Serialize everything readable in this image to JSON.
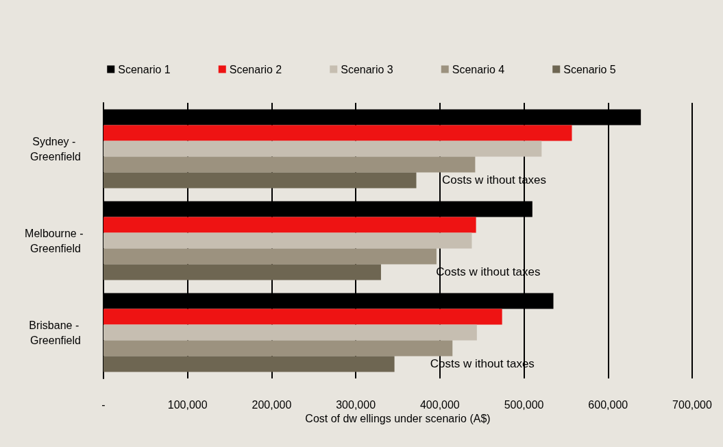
{
  "chart_data": {
    "type": "bar",
    "orientation": "horizontal",
    "xlabel": "Cost of dw ellings under scenario (A$)",
    "categories": [
      "Sydney - Greenfield",
      "Melbourne - Greenfield",
      "Brisbane - Greenfield"
    ],
    "series": [
      {
        "name": "Scenario 1",
        "color": "#000000",
        "values": [
          639000,
          510000,
          535000
        ]
      },
      {
        "name": "Scenario 2",
        "color": "#ee1313",
        "values": [
          557000,
          443000,
          474000
        ]
      },
      {
        "name": "Scenario 3",
        "color": "#c6beb1",
        "values": [
          521000,
          438000,
          444000
        ]
      },
      {
        "name": "Scenario 4",
        "color": "#9c927f",
        "values": [
          442000,
          396000,
          415000
        ]
      },
      {
        "name": "Scenario 5",
        "color": "#6e6652",
        "values": [
          372000,
          330000,
          346000
        ]
      }
    ],
    "xlim": [
      0,
      700000
    ],
    "xticks": [
      {
        "value": 0,
        "label": "-"
      },
      {
        "value": 100000,
        "label": "100,000"
      },
      {
        "value": 200000,
        "label": "200,000"
      },
      {
        "value": 300000,
        "label": "300,000"
      },
      {
        "value": 400000,
        "label": "400,000"
      },
      {
        "value": 500000,
        "label": "500,000"
      },
      {
        "value": 600000,
        "label": "600,000"
      },
      {
        "value": 700000,
        "label": "700,000"
      }
    ],
    "grid": "x",
    "legend": "top",
    "annotations": [
      "Costs w ithout taxes",
      "Costs w ithout taxes",
      "Costs w ithout taxes"
    ]
  }
}
